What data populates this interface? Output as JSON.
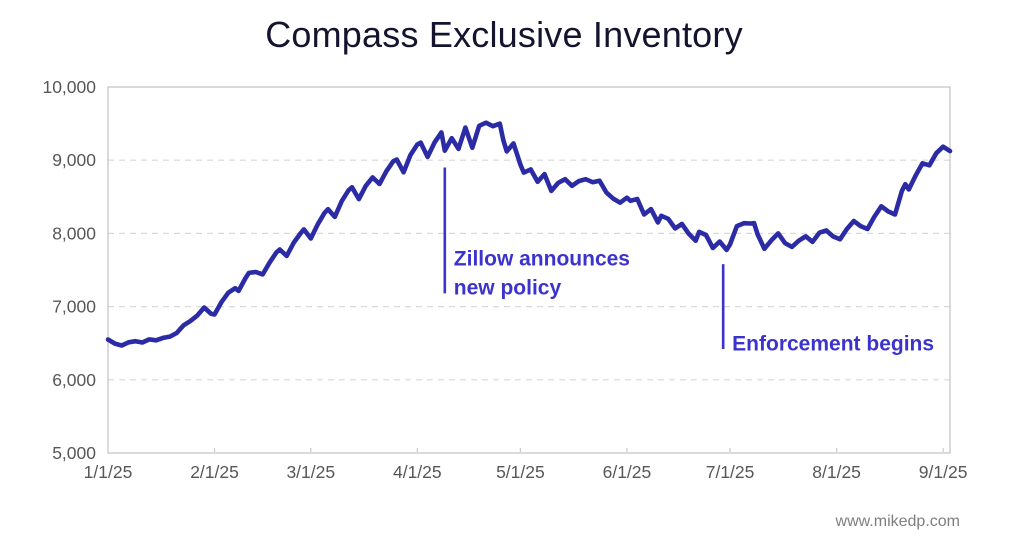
{
  "title": {
    "text": "Compass Exclusive Inventory"
  },
  "watermark": {
    "text": "www.mikedp.com"
  },
  "colors": {
    "line": "#2b2ba6",
    "annotation": "#3b33cc",
    "title_text": "#14142e",
    "axis_text": "#575757",
    "grid": "#d9d9d9",
    "plot_border": "#c2c2c2",
    "tick": "#c9c9c9",
    "background": "#ffffff"
  },
  "chart_data": {
    "type": "line",
    "title": "Compass Exclusive Inventory",
    "xlabel": "",
    "ylabel": "",
    "legend": "none",
    "grid": "horizontal-dashed",
    "x_axis": {
      "tick_labels": [
        "1/1/25",
        "2/1/25",
        "3/1/25",
        "4/1/25",
        "5/1/25",
        "6/1/25",
        "7/1/25",
        "8/1/25",
        "9/1/25"
      ],
      "tick_days": [
        0,
        31,
        59,
        90,
        120,
        151,
        181,
        212,
        243
      ],
      "domain_days": [
        0,
        245
      ]
    },
    "y_axis": {
      "lim": [
        5000,
        10000
      ],
      "ticks": [
        5000,
        6000,
        7000,
        8000,
        9000,
        10000
      ],
      "tick_labels": [
        "5,000",
        "6,000",
        "7,000",
        "8,000",
        "9,000",
        "10,000"
      ]
    },
    "series": [
      {
        "name": "Compass exclusive inventory",
        "points_day_value": [
          [
            0,
            6550
          ],
          [
            2,
            6495
          ],
          [
            4,
            6468
          ],
          [
            6,
            6512
          ],
          [
            8,
            6528
          ],
          [
            10,
            6510
          ],
          [
            12,
            6552
          ],
          [
            14,
            6540
          ],
          [
            16,
            6572
          ],
          [
            18,
            6590
          ],
          [
            20,
            6640
          ],
          [
            22,
            6745
          ],
          [
            24,
            6805
          ],
          [
            26,
            6880
          ],
          [
            28,
            6988
          ],
          [
            30,
            6902
          ],
          [
            31,
            6892
          ],
          [
            33,
            7060
          ],
          [
            35,
            7190
          ],
          [
            37,
            7252
          ],
          [
            38,
            7215
          ],
          [
            40,
            7390
          ],
          [
            41,
            7460
          ],
          [
            43,
            7472
          ],
          [
            45,
            7440
          ],
          [
            47,
            7600
          ],
          [
            49,
            7740
          ],
          [
            50,
            7780
          ],
          [
            52,
            7692
          ],
          [
            54,
            7870
          ],
          [
            56,
            8000
          ],
          [
            57,
            8055
          ],
          [
            59,
            7930
          ],
          [
            61,
            8120
          ],
          [
            63,
            8280
          ],
          [
            64,
            8330
          ],
          [
            66,
            8225
          ],
          [
            68,
            8440
          ],
          [
            70,
            8590
          ],
          [
            71,
            8630
          ],
          [
            73,
            8468
          ],
          [
            75,
            8650
          ],
          [
            77,
            8765
          ],
          [
            79,
            8675
          ],
          [
            81,
            8850
          ],
          [
            83,
            8985
          ],
          [
            84,
            9010
          ],
          [
            86,
            8835
          ],
          [
            88,
            9070
          ],
          [
            90,
            9215
          ],
          [
            91,
            9240
          ],
          [
            93,
            9045
          ],
          [
            95,
            9240
          ],
          [
            97,
            9380
          ],
          [
            98,
            9130
          ],
          [
            100,
            9300
          ],
          [
            102,
            9155
          ],
          [
            104,
            9445
          ],
          [
            106,
            9170
          ],
          [
            108,
            9470
          ],
          [
            110,
            9512
          ],
          [
            112,
            9465
          ],
          [
            114,
            9500
          ],
          [
            115,
            9280
          ],
          [
            116,
            9120
          ],
          [
            118,
            9230
          ],
          [
            120,
            8940
          ],
          [
            121,
            8830
          ],
          [
            123,
            8875
          ],
          [
            125,
            8705
          ],
          [
            127,
            8810
          ],
          [
            129,
            8580
          ],
          [
            131,
            8690
          ],
          [
            133,
            8740
          ],
          [
            135,
            8650
          ],
          [
            137,
            8715
          ],
          [
            139,
            8740
          ],
          [
            141,
            8700
          ],
          [
            143,
            8720
          ],
          [
            145,
            8560
          ],
          [
            147,
            8475
          ],
          [
            149,
            8420
          ],
          [
            151,
            8488
          ],
          [
            152,
            8445
          ],
          [
            154,
            8470
          ],
          [
            156,
            8258
          ],
          [
            158,
            8332
          ],
          [
            160,
            8150
          ],
          [
            161,
            8240
          ],
          [
            163,
            8200
          ],
          [
            165,
            8068
          ],
          [
            167,
            8130
          ],
          [
            169,
            7995
          ],
          [
            171,
            7900
          ],
          [
            172,
            8020
          ],
          [
            174,
            7978
          ],
          [
            176,
            7800
          ],
          [
            178,
            7890
          ],
          [
            180,
            7775
          ],
          [
            181,
            7850
          ],
          [
            183,
            8100
          ],
          [
            185,
            8140
          ],
          [
            187,
            8135
          ],
          [
            188,
            8140
          ],
          [
            189,
            7990
          ],
          [
            191,
            7790
          ],
          [
            193,
            7905
          ],
          [
            195,
            8000
          ],
          [
            197,
            7868
          ],
          [
            199,
            7815
          ],
          [
            201,
            7900
          ],
          [
            203,
            7960
          ],
          [
            205,
            7884
          ],
          [
            207,
            8010
          ],
          [
            209,
            8040
          ],
          [
            211,
            7958
          ],
          [
            213,
            7920
          ],
          [
            215,
            8060
          ],
          [
            217,
            8170
          ],
          [
            219,
            8100
          ],
          [
            221,
            8060
          ],
          [
            223,
            8230
          ],
          [
            225,
            8370
          ],
          [
            227,
            8300
          ],
          [
            229,
            8258
          ],
          [
            231,
            8580
          ],
          [
            232,
            8672
          ],
          [
            233,
            8600
          ],
          [
            235,
            8790
          ],
          [
            237,
            8958
          ],
          [
            239,
            8930
          ],
          [
            241,
            9095
          ],
          [
            243,
            9185
          ],
          [
            245,
            9125
          ]
        ]
      }
    ],
    "annotations": [
      {
        "id": "zillow",
        "label": "Zillow announces new policy",
        "label_lines": [
          "Zillow announces",
          "new policy"
        ],
        "day": 98,
        "line_value_top": 8900,
        "line_value_bottom": 7180,
        "text_baseline_values": [
          7560,
          7165
        ]
      },
      {
        "id": "enforcement",
        "label": "Enforcement begins",
        "label_lines": [
          "Enforcement begins"
        ],
        "day": 179,
        "line_value_top": 7580,
        "line_value_bottom": 6420,
        "text_baseline_values": [
          6400
        ]
      }
    ]
  }
}
